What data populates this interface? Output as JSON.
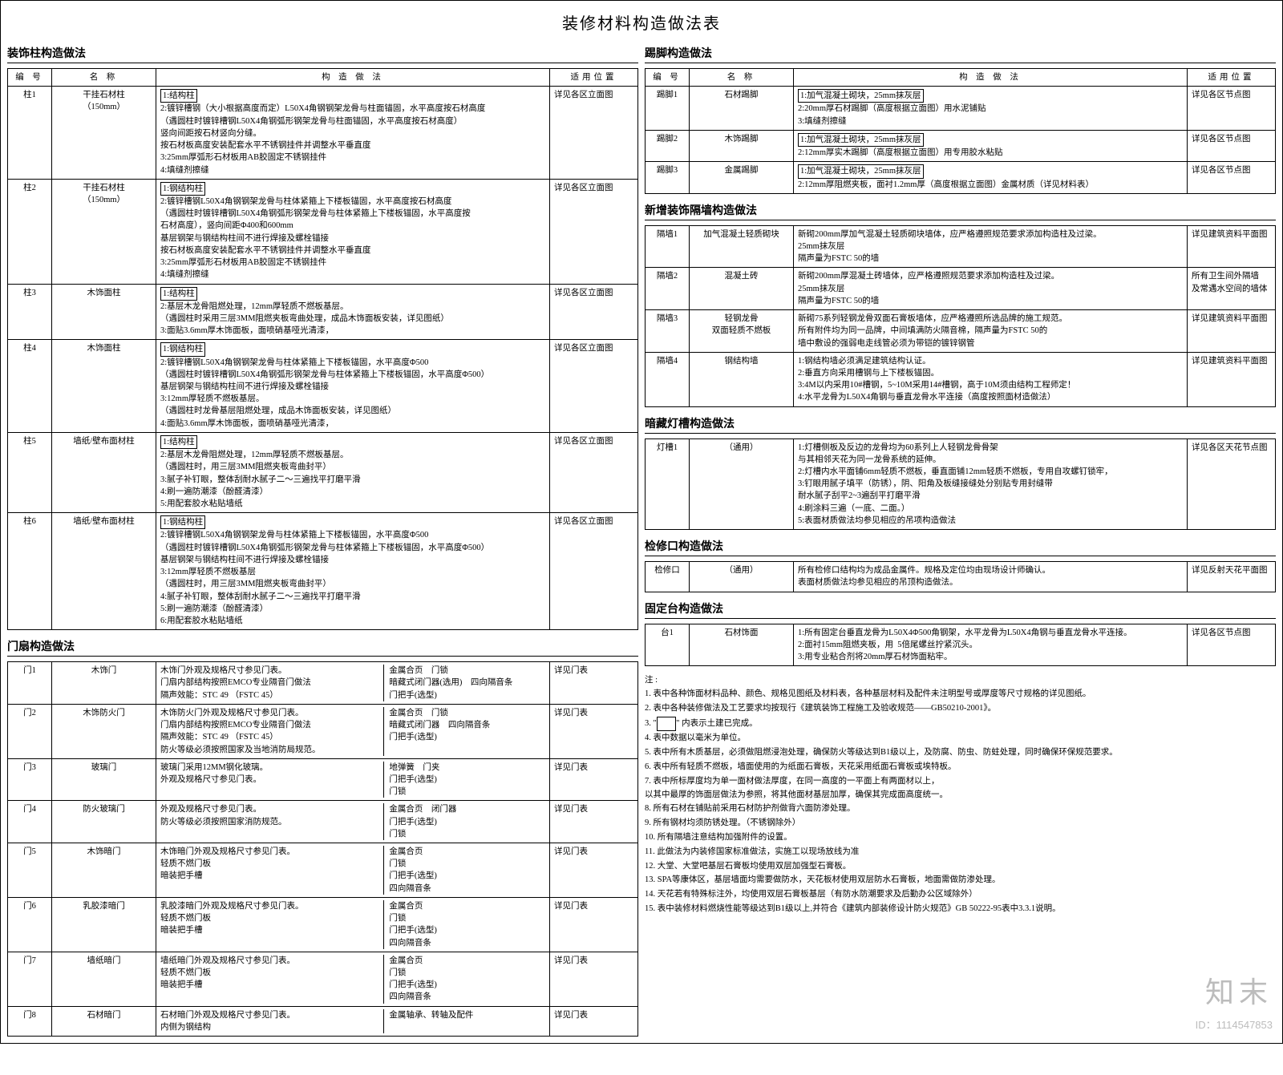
{
  "title": "装修材料构造做法表",
  "left": {
    "decoCol": {
      "heading": "装饰柱构造做法",
      "headers": {
        "id": "编 号",
        "name": "名 称",
        "method": "构 造 做 法",
        "loc": "适用位置"
      },
      "rows": [
        {
          "id": "柱1",
          "name": "干挂石材柱\n（150mm）",
          "boxed": "1:结构柱",
          "method": "2:镀锌槽钢（大小根据高度而定）L50X4角钢钢架龙骨与柱面锚固，水平高度按石材高度\n（遇圆柱时镀锌槽钢L50X4角钢弧形钢架龙骨与柱面锚固，水平高度按石材高度）\n竖向间距按石材竖向分缝。\n按石材板高度安装配套水平不锈钢挂件并调整水平垂直度\n3:25mm厚弧形石材板用AB胶固定不锈钢挂件\n4:填缝剂擦缝",
          "loc": "详见各区立面图"
        },
        {
          "id": "柱2",
          "name": "干挂石材柱\n（150mm）",
          "boxed": "1:钢结构柱",
          "method": "2:镀锌槽钢L50X4角钢钢架龙骨与柱体紧箍上下楼板锚固，水平高度按石材高度\n（遇圆柱时镀锌槽钢L50X4角钢弧形钢架龙骨与柱体紧箍上下楼板锚固，水平高度按\n石材高度），竖向间距Φ400和600mm\n基层钢架与钢结构柱间不进行焊接及螺栓锚接\n按石材板高度安装配套水平不锈钢挂件并调整水平垂直度\n3:25mm厚弧形石材板用AB胶固定不锈钢挂件\n4:填缝剂擦缝",
          "loc": "详见各区立面图"
        },
        {
          "id": "柱3",
          "name": "木饰面柱",
          "boxed": "1:结构柱",
          "method": "2:基层木龙骨阻燃处理，12mm厚轻质不燃板基层。\n（遇圆柱时采用三层3MM阻燃夹板弯曲处理，成品木饰面板安装，详见图纸）\n3:面贴3.6mm厚木饰面板，面喷硝基哑光清漆，",
          "loc": "详见各区立面图"
        },
        {
          "id": "柱4",
          "name": "木饰面柱",
          "boxed": "1:钢结构柱",
          "method": "2:镀锌槽钢L50X4角钢钢架龙骨与柱体紧箍上下楼板锚固，水平高度Φ500\n（遇圆柱时镀锌槽钢L50X4角钢弧形钢架龙骨与柱体紧箍上下楼板锚固，水平高度Φ500）\n基层钢架与钢结构柱间不进行焊接及螺栓锚接\n3:12mm厚轻质不燃板基层。\n（遇圆柱时龙骨基层阻燃处理，成品木饰面板安装，详见图纸）\n4:面贴3.6mm厚木饰面板，面喷硝基哑光清漆，",
          "loc": "详见各区立面图"
        },
        {
          "id": "柱5",
          "name": "墙纸/壁布面材柱",
          "boxed": "1:结构柱",
          "method": "2:基层木龙骨阻燃处理，12mm厚轻质不燃板基层。\n（遇圆柱时，用三层3MM阻燃夹板弯曲封平）\n3:腻子补钉眼，整体刮耐水腻子二～三遍找平打磨平滑\n4:刷一遍防潮漆（酚醛清漆）\n5:用配套胶水粘贴墙纸",
          "loc": "详见各区立面图"
        },
        {
          "id": "柱6",
          "name": "墙纸/壁布面材柱",
          "boxed": "1:钢结构柱",
          "method": "2:镀锌槽钢L50X4角钢钢架龙骨与柱体紧箍上下楼板锚固，水平高度Φ500\n（遇圆柱时镀锌槽钢L50X4角钢弧形钢架龙骨与柱体紧箍上下楼板锚固，水平高度Φ500）\n基层钢架与钢结构柱间不进行焊接及螺栓锚接\n3:12mm厚轻质不燃板基层\n（遇圆柱时，用三层3MM阻燃夹板弯曲封平）\n4:腻子补钉眼，整体刮耐水腻子二～三遍找平打磨平滑\n5:刷一遍防潮漆（酚醛清漆）\n6:用配套胶水粘贴墙纸",
          "loc": "详见各区立面图"
        }
      ]
    },
    "doors": {
      "heading": "门扇构造做法",
      "rows": [
        {
          "id": "门1",
          "name": "木饰门",
          "l": "木饰门外观及规格尺寸参见门表。\n门扇内部结构按照EMCO专业隔音门做法\n隔声效能：STC 49 （FSTC 45）",
          "r": "金属合页\t门锁\n暗藏式闭门器(选用)\t四向隔音条\n门把手(选型)",
          "loc": "详见门表"
        },
        {
          "id": "门2",
          "name": "木饰防火门",
          "l": "木饰防火门外观及规格尺寸参见门表。\n门扇内部结构按照EMCO专业隔音门做法\n隔声效能：STC 49 （FSTC 45）\n防火等级必须按照国家及当地消防局规范。",
          "r": "金属合页\t门锁\n暗藏式闭门器\t四向隔音条\n门把手(选型)",
          "loc": "详见门表"
        },
        {
          "id": "门3",
          "name": "玻璃门",
          "l": "玻璃门采用12MM钢化玻璃。\n外观及规格尺寸参见门表。",
          "r": "地弹簧\t门夹\n门把手(选型)\n门锁",
          "loc": "详见门表"
        },
        {
          "id": "门4",
          "name": "防火玻璃门",
          "l": "外观及规格尺寸参见门表。\n防火等级必须按照国家消防规范。",
          "r": "金属合页\t闭门器\n门把手(选型)\n门锁",
          "loc": "详见门表"
        },
        {
          "id": "门5",
          "name": "木饰暗门",
          "l": "木饰暗门外观及规格尺寸参见门表。\n轻质不燃门板\n暗装把手槽",
          "r": "金属合页\n门锁\n门把手(选型)\n四向隔音条",
          "loc": "详见门表"
        },
        {
          "id": "门6",
          "name": "乳胶漆暗门",
          "l": "乳胶漆暗门外观及规格尺寸参见门表。\n轻质不燃门板\n暗装把手槽",
          "r": "金属合页\n门锁\n门把手(选型)\n四向隔音条",
          "loc": "详见门表"
        },
        {
          "id": "门7",
          "name": "墙纸暗门",
          "l": "墙纸暗门外观及规格尺寸参见门表。\n轻质不燃门板\n暗装把手槽",
          "r": "金属合页\n门锁\n门把手(选型)\n四向隔音条",
          "loc": "详见门表"
        },
        {
          "id": "门8",
          "name": "石材暗门",
          "l": "石材暗门外观及规格尺寸参见门表。\n内侧为钢结构",
          "r": "金属轴承、转轴及配件",
          "loc": "详见门表"
        }
      ]
    }
  },
  "right": {
    "skirt": {
      "heading": "踢脚构造做法",
      "headers": {
        "id": "编 号",
        "name": "名 称",
        "method": "构 造 做 法",
        "loc": "适用位置"
      },
      "rows": [
        {
          "id": "踢脚1",
          "name": "石材踢脚",
          "boxed": "1:加气混凝土砌块，25mm抹灰层",
          "method": "2:20mm厚石材踢脚（高度根据立面图）用水泥铺贴\n3:填缝剂擦缝",
          "loc": "详见各区节点图"
        },
        {
          "id": "踢脚2",
          "name": "木饰踢脚",
          "boxed": "1:加气混凝土砌块，25mm抹灰层",
          "method": "2:12mm厚实木踢脚（高度根据立面图）用专用胶水粘贴",
          "loc": "详见各区节点图"
        },
        {
          "id": "踢脚3",
          "name": "金属踢脚",
          "boxed": "1:加气混凝土砌块，25mm抹灰层",
          "method": "2:12mm厚阻燃夹板，面衬1.2mm厚（高度根据立面图）金属材质（详见材料表）",
          "loc": "详见各区节点图"
        }
      ]
    },
    "partition": {
      "heading": "新增装饰隔墙构造做法",
      "rows": [
        {
          "id": "隔墙1",
          "name": "加气混凝土轻质砌块",
          "method": "新砌200mm厚加气混凝土轻质砌块墙体，应严格遵照规范要求添加构造柱及过梁。\n25mm抹灰层\n隔声量为FSTC 50的墙",
          "loc": "详见建筑资料平面图"
        },
        {
          "id": "隔墙2",
          "name": "混凝土砖",
          "method": "新砌200mm厚混凝土砖墙体，应严格遵照规范要求添加构造柱及过梁。\n25mm抹灰层\n隔声量为FSTC 50的墙",
          "loc": "所有卫生间外隔墙\n及常遇水空间的墙体"
        },
        {
          "id": "隔墙3",
          "name": "轻钢龙骨\n双面轻质不燃板",
          "method": "新砌75系列轻钢龙骨双面石膏板墙体，应严格遵照所选品牌的施工规范。\n所有附件均为同一品牌，中间填满防火隔音棉，隔声量为FSTC 50的\n墙中敷设的强弱电走线管必须为带铠的镀锌钢管",
          "loc": "详见建筑资料平面图"
        },
        {
          "id": "隔墙4",
          "name": "钢结构墙",
          "method": "1:钢结构墙必须满足建筑结构认证。\n2:垂直方向采用槽钢与上下楼板锚固。\n3:4M以内采用10#槽钢，5~10M采用14#槽钢，高于10M须由结构工程师定！\n4:水平龙骨为L50X4角钢与垂直龙骨水平连接（高度按照面材造做法）",
          "loc": "详见建筑资料平面图"
        }
      ]
    },
    "light": {
      "heading": "暗藏灯槽构造做法",
      "rows": [
        {
          "id": "灯槽1",
          "name": "（通用）",
          "method": "1:灯槽侧板及反边的龙骨均为60系列上人轻钢龙骨骨架\n与其相邻天花为同一龙骨系统的延伸。\n2:灯槽内水平面铺6mm轻质不燃板，垂直面铺12mm轻质不燃板，专用自攻螺钉锁牢，\n3:钉眼用腻子填平（防锈），阴、阳角及板缝接缝处分别贴专用封缝带\n耐水腻子刮平2~3遍刮平打磨平滑\n4:刷涂料三遍（一底、二面。）\n5:表面材质做法均参见相应的吊项构造做法",
          "loc": "详见各区天花节点图"
        }
      ]
    },
    "inspect": {
      "heading": "检修口构造做法",
      "rows": [
        {
          "id": "检修口",
          "name": "（通用）",
          "method": "所有检修口结构均为成品金属件。规格及定位均由现场设计师确认。\n表面材质做法均参见相应的吊顶构造做法。",
          "loc": "详见反射天花平面图"
        }
      ]
    },
    "fixed": {
      "heading": "固定台构造做法",
      "rows": [
        {
          "id": "台1",
          "name": "石材饰面",
          "method": "1:所有固定台垂直龙骨为L50X4Φ500角钢架，水平龙骨为L50X4角钢与垂直龙骨水平连接。\n2:面衬15mm阻燃夹板，用  5倍尾螺丝拧紧沉头。\n3:用专业粘合剂将20mm厚石材饰面粘牢。",
          "loc": "详见各区节点图"
        }
      ]
    },
    "notes": {
      "lead": "注 : ",
      "items": [
        "1. 表中各种饰面材料品种、颜色、规格见图纸及材料表，各种基层材料及配件未注明型号或厚度等尺寸规格的详见图纸。",
        "2. 表中各种装修做法及工艺要求均按现行《建筑装饰工程施工及验收规范——GB50210-2001》。",
        "3. \"           \" 内表示土建已完成。",
        "4. 表中数据以毫米为单位。",
        "5. 表中所有木质基层，必须做阻燃浸泡处理，确保防火等级达到B1级以上，及防腐、防虫、防蛀处理，同时确保环保规范要求。",
        "6. 表中所有轻质不燃板，墙面使用的为纸面石膏板，天花采用纸面石膏板或埃特板。",
        "7. 表中所标厚度均为单一面材做法厚度，在同一高度的一平面上有两面材以上，\n   以其中最厚的饰面层做法为参照，将其他面材基层加厚，确保其完成面高度统一。",
        "8. 所有石材在铺贴前采用石材防护剂做背六面防渗处理。",
        "9. 所有钢材均须防锈处理。（不锈钢除外）",
        "10. 所有隔墙注意结构加强附件的设置。",
        "11. 此做法为内装修国家标准做法，实施工以现场放线为准",
        "12. 大堂、大堂吧基层石膏板均使用双层加强型石膏板。",
        "13. SPA等康体区，基层墙面均需要做防水，天花板材使用双层防水石膏板，地面需做防渗处理。",
        "14. 天花若有特殊标注外，均使用双层石膏板基层（有防水防潮要求及后勤办公区域除外）",
        "15. 表中装修材料燃烧性能等级达到B1级以上,并符合《建筑内部装修设计防火规范》GB 50222-95表中3.3.1说明。"
      ]
    }
  },
  "watermark": {
    "brand": "知末",
    "id": "ID：1114547853"
  }
}
